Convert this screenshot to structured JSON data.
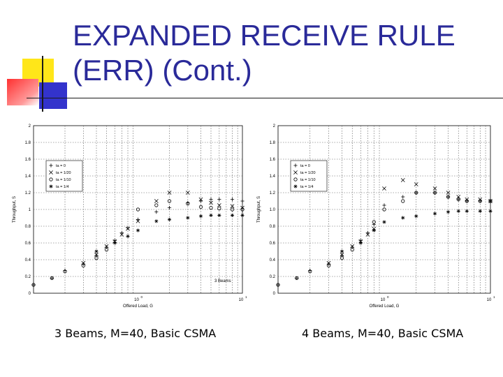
{
  "slide": {
    "title": "EXPANDED RECEIVE RULE\n(ERR) (Cont.)",
    "accent_colors": {
      "yellow": "#ffe619",
      "red": "#ff3030",
      "blue": "#3333cc",
      "title": "#2a2a99"
    },
    "captions": [
      "3 Beams, M=40, Basic CSMA",
      "4 Beams, M=40, Basic CSMA"
    ]
  },
  "chart_data": [
    {
      "type": "scatter",
      "x_scale": "log",
      "xlim": [
        0.1,
        10
      ],
      "ylim": [
        0,
        2
      ],
      "x_ticks": [
        {
          "v": 1,
          "label": "10⁰"
        },
        {
          "v": 10,
          "label": "10¹"
        }
      ],
      "x_tick_base": "10",
      "x_tick_exps": [
        "0",
        "1"
      ],
      "y_ticks": [
        "0",
        "0.2",
        "0.4",
        "0.6",
        "0.8",
        "1",
        "1.2",
        "1.4",
        "1.6",
        "1.8",
        "2"
      ],
      "xlabel": "Offered Load, G",
      "ylabel": "Throughput, S",
      "grid": true,
      "legend_position": "top-left",
      "annotation": "3 Beams",
      "series": [
        {
          "name": "ta = 0",
          "marker": "plus",
          "x": [
            0.1,
            0.15,
            0.2,
            0.3,
            0.4,
            0.5,
            0.6,
            0.7,
            0.8,
            1.0,
            1.5,
            2,
            3,
            4,
            5,
            6,
            8,
            10
          ],
          "y": [
            0.1,
            0.18,
            0.27,
            0.35,
            0.45,
            0.55,
            0.63,
            0.72,
            0.78,
            0.88,
            0.97,
            1.02,
            1.08,
            1.1,
            1.12,
            1.12,
            1.12,
            1.1
          ]
        },
        {
          "name": "ta = 1/20",
          "marker": "cross",
          "x": [
            0.3,
            0.4,
            0.5,
            0.6,
            0.7,
            0.8,
            1.0,
            1.5,
            2,
            3,
            4,
            5,
            6,
            8,
            10
          ],
          "y": [
            0.36,
            0.46,
            0.56,
            0.62,
            0.7,
            0.77,
            0.86,
            1.1,
            1.2,
            1.2,
            1.12,
            1.08,
            1.05,
            1.04,
            1.02
          ]
        },
        {
          "name": "ta = 1/10",
          "marker": "circle",
          "x": [
            0.1,
            0.15,
            0.2,
            0.3,
            0.4,
            0.5,
            1.0,
            1.5,
            2,
            3,
            4,
            5,
            6,
            8,
            10
          ],
          "y": [
            0.1,
            0.18,
            0.26,
            0.33,
            0.42,
            0.52,
            1.0,
            1.05,
            1.1,
            1.07,
            1.03,
            1.02,
            1.01,
            1.0,
            1.0
          ]
        },
        {
          "name": "ta = 1/4",
          "marker": "star",
          "x": [
            0.4,
            0.6,
            0.8,
            1.0,
            1.5,
            2,
            3,
            4,
            5,
            6,
            8,
            10
          ],
          "y": [
            0.5,
            0.6,
            0.68,
            0.75,
            0.86,
            0.88,
            0.9,
            0.92,
            0.93,
            0.93,
            0.93,
            0.93
          ]
        }
      ]
    },
    {
      "type": "scatter",
      "x_scale": "log",
      "xlim": [
        0.1,
        10
      ],
      "ylim": [
        0,
        2
      ],
      "x_ticks": [
        {
          "v": 1,
          "label": "10⁰"
        },
        {
          "v": 10,
          "label": "10¹"
        }
      ],
      "x_tick_base": "10",
      "x_tick_exps": [
        "0",
        "1"
      ],
      "y_ticks": [
        "0",
        "0.2",
        "0.4",
        "0.6",
        "0.8",
        "1.0",
        "1.2",
        "1.4",
        "1.6",
        "1.8",
        "2"
      ],
      "xlabel": "Offered Load, G",
      "ylabel": "Throughput, S",
      "grid": true,
      "legend_position": "top-left",
      "series": [
        {
          "name": "ta = 0",
          "marker": "plus",
          "x": [
            0.1,
            0.15,
            0.2,
            0.3,
            0.4,
            0.5,
            0.6,
            0.7,
            0.8,
            1.0,
            1.5,
            2,
            3,
            4,
            5,
            6,
            8,
            10
          ],
          "y": [
            0.1,
            0.18,
            0.27,
            0.35,
            0.45,
            0.55,
            0.63,
            0.72,
            0.82,
            1.05,
            1.15,
            1.2,
            1.2,
            1.15,
            1.12,
            1.1,
            1.1,
            1.1
          ]
        },
        {
          "name": "ta = 1/20",
          "marker": "cross",
          "x": [
            0.3,
            0.4,
            0.5,
            0.6,
            0.7,
            0.8,
            1.0,
            1.5,
            2,
            3,
            4,
            5,
            6,
            8,
            10
          ],
          "y": [
            0.36,
            0.46,
            0.56,
            0.62,
            0.7,
            0.77,
            1.25,
            1.35,
            1.3,
            1.25,
            1.2,
            1.15,
            1.12,
            1.12,
            1.1
          ]
        },
        {
          "name": "ta = 1/10",
          "marker": "circle",
          "x": [
            0.1,
            0.15,
            0.2,
            0.3,
            0.4,
            0.5,
            0.8,
            1.0,
            1.5,
            2,
            3,
            4,
            5,
            6,
            8,
            10
          ],
          "y": [
            0.1,
            0.18,
            0.26,
            0.33,
            0.42,
            0.52,
            0.85,
            1.0,
            1.1,
            1.2,
            1.2,
            1.15,
            1.12,
            1.1,
            1.1,
            1.1
          ]
        },
        {
          "name": "ta = 1/4",
          "marker": "star",
          "x": [
            0.4,
            0.6,
            0.8,
            1.0,
            1.5,
            2,
            3,
            4,
            5,
            6,
            8,
            10
          ],
          "y": [
            0.5,
            0.6,
            0.75,
            0.85,
            0.9,
            0.92,
            0.95,
            0.97,
            0.98,
            0.98,
            0.98,
            0.98
          ]
        }
      ]
    }
  ]
}
